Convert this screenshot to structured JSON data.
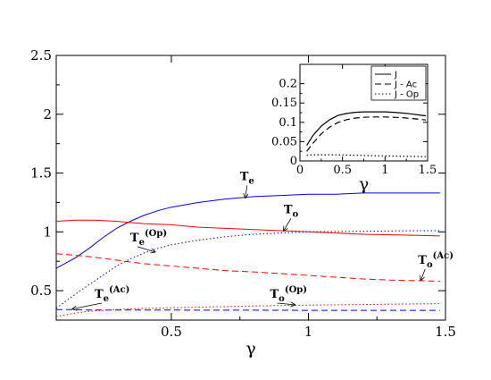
{
  "chart_data": [
    {
      "type": "line",
      "title": "",
      "xlabel": "γ",
      "ylabel": "",
      "xlim": [
        0.08,
        1.5
      ],
      "ylim": [
        0.25,
        2.5
      ],
      "xticks": [
        {
          "v": 0.5,
          "label": "0.5"
        },
        {
          "v": 1,
          "label": "1"
        },
        {
          "v": 1.5,
          "label": "1.5"
        }
      ],
      "yticks": [
        {
          "v": 0.5,
          "label": "0.5"
        },
        {
          "v": 1,
          "label": "1"
        },
        {
          "v": 1.5,
          "label": "1.5"
        },
        {
          "v": 2,
          "label": "2"
        },
        {
          "v": 2.5,
          "label": "2.5"
        }
      ],
      "grid": false,
      "series": [
        {
          "label_main": "T",
          "label_sub": "e",
          "label_sup": "",
          "color": "#0000ff",
          "dash": "solid",
          "points": [
            [
              0.08,
              0.69
            ],
            [
              0.15,
              0.78
            ],
            [
              0.2,
              0.86
            ],
            [
              0.25,
              0.95
            ],
            [
              0.3,
              1.03
            ],
            [
              0.35,
              1.09
            ],
            [
              0.4,
              1.14
            ],
            [
              0.45,
              1.18
            ],
            [
              0.5,
              1.21
            ],
            [
              0.6,
              1.25
            ],
            [
              0.7,
              1.28
            ],
            [
              0.8,
              1.3
            ],
            [
              0.9,
              1.31
            ],
            [
              1.0,
              1.32
            ],
            [
              1.1,
              1.32
            ],
            [
              1.2,
              1.33
            ],
            [
              1.3,
              1.33
            ],
            [
              1.4,
              1.33
            ],
            [
              1.48,
              1.33
            ]
          ]
        },
        {
          "label_main": "T",
          "label_sub": "o",
          "label_sup": "",
          "color": "#ff0000",
          "dash": "solid",
          "points": [
            [
              0.08,
              1.09
            ],
            [
              0.15,
              1.1
            ],
            [
              0.22,
              1.1
            ],
            [
              0.3,
              1.09
            ],
            [
              0.4,
              1.07
            ],
            [
              0.5,
              1.06
            ],
            [
              0.6,
              1.04
            ],
            [
              0.7,
              1.03
            ],
            [
              0.8,
              1.02
            ],
            [
              0.9,
              1.01
            ],
            [
              1.0,
              1.0
            ],
            [
              1.1,
              0.99
            ],
            [
              1.2,
              0.98
            ],
            [
              1.3,
              0.975
            ],
            [
              1.4,
              0.97
            ],
            [
              1.48,
              0.965
            ]
          ]
        },
        {
          "label_main": "T",
          "label_sub": "e",
          "label_sup": "(Op)",
          "color": "#0000ff",
          "dash": "dotted",
          "points": [
            [
              0.08,
              0.35
            ],
            [
              0.12,
              0.42
            ],
            [
              0.18,
              0.52
            ],
            [
              0.25,
              0.63
            ],
            [
              0.3,
              0.71
            ],
            [
              0.35,
              0.77
            ],
            [
              0.4,
              0.82
            ],
            [
              0.45,
              0.86
            ],
            [
              0.5,
              0.89
            ],
            [
              0.6,
              0.93
            ],
            [
              0.7,
              0.96
            ],
            [
              0.8,
              0.98
            ],
            [
              0.9,
              0.99
            ],
            [
              1.0,
              1.0
            ],
            [
              1.2,
              1.005
            ],
            [
              1.4,
              1.01
            ],
            [
              1.48,
              1.01
            ]
          ]
        },
        {
          "label_main": "T",
          "label_sub": "o",
          "label_sup": "(Ac)",
          "color": "#ff0000",
          "dash": "dashed",
          "points": [
            [
              0.08,
              0.815
            ],
            [
              0.2,
              0.79
            ],
            [
              0.3,
              0.76
            ],
            [
              0.4,
              0.73
            ],
            [
              0.5,
              0.71
            ],
            [
              0.6,
              0.69
            ],
            [
              0.7,
              0.67
            ],
            [
              0.8,
              0.66
            ],
            [
              0.9,
              0.645
            ],
            [
              1.0,
              0.63
            ],
            [
              1.1,
              0.615
            ],
            [
              1.2,
              0.6
            ],
            [
              1.3,
              0.59
            ],
            [
              1.4,
              0.585
            ],
            [
              1.48,
              0.58
            ]
          ]
        },
        {
          "label_main": "T",
          "label_sub": "e",
          "label_sup": "(Ac)",
          "color": "#0000ff",
          "dash": "dashed",
          "points": [
            [
              0.08,
              0.34
            ],
            [
              0.15,
              0.34
            ],
            [
              0.2,
              0.335
            ],
            [
              0.3,
              0.335
            ],
            [
              0.5,
              0.335
            ],
            [
              0.8,
              0.334
            ],
            [
              1.0,
              0.333
            ],
            [
              1.2,
              0.333
            ],
            [
              1.48,
              0.333
            ]
          ]
        },
        {
          "label_main": "T",
          "label_sub": "o",
          "label_sup": "(Op)",
          "color": "#ff0000",
          "dash": "dotted",
          "points": [
            [
              0.08,
              0.28
            ],
            [
              0.15,
              0.31
            ],
            [
              0.2,
              0.325
            ],
            [
              0.3,
              0.34
            ],
            [
              0.4,
              0.35
            ],
            [
              0.5,
              0.355
            ],
            [
              0.7,
              0.365
            ],
            [
              0.9,
              0.375
            ],
            [
              1.1,
              0.38
            ],
            [
              1.3,
              0.385
            ],
            [
              1.48,
              0.39
            ]
          ]
        }
      ],
      "annotations": [
        {
          "main": "T",
          "sub": "e",
          "sup": "",
          "text_x": 0.75,
          "text_y": 1.44,
          "arrow_x": 0.77,
          "arrow_y": 1.29
        },
        {
          "main": "T",
          "sub": "o",
          "sup": "",
          "text_x": 0.91,
          "text_y": 1.16,
          "arrow_x": 0.91,
          "arrow_y": 1.01
        },
        {
          "main": "T",
          "sub": "e",
          "sup": "(Op)",
          "text_x": 0.35,
          "text_y": 0.92,
          "arrow_x": 0.44,
          "arrow_y": 0.83
        },
        {
          "main": "T",
          "sub": "o",
          "sup": "(Ac)",
          "text_x": 1.4,
          "text_y": 0.73,
          "arrow_x": 1.41,
          "arrow_y": 0.59
        },
        {
          "main": "T",
          "sub": "e",
          "sup": "(Ac)",
          "text_x": 0.22,
          "text_y": 0.44,
          "arrow_x": 0.14,
          "arrow_y": 0.345
        },
        {
          "main": "T",
          "sub": "o",
          "sup": "(Op)",
          "text_x": 0.86,
          "text_y": 0.44,
          "arrow_x": 0.95,
          "arrow_y": 0.38
        }
      ]
    },
    {
      "type": "line",
      "title": "",
      "xlabel": "γ",
      "ylabel": "",
      "xlim": [
        0,
        1.5
      ],
      "ylim": [
        0,
        0.25
      ],
      "xticks": [
        {
          "v": 0,
          "label": "0"
        },
        {
          "v": 0.5,
          "label": "0.5"
        },
        {
          "v": 1,
          "label": "1"
        },
        {
          "v": 1.5,
          "label": "1.5"
        }
      ],
      "yticks": [
        {
          "v": 0,
          "label": "0"
        },
        {
          "v": 0.05,
          "label": "0.05"
        },
        {
          "v": 0.1,
          "label": "0.1"
        },
        {
          "v": 0.15,
          "label": "0.15"
        },
        {
          "v": 0.2,
          "label": "0.2"
        }
      ],
      "grid": false,
      "legend": "top-right",
      "series": [
        {
          "name": "J",
          "color": "#000000",
          "dash": "solid",
          "points": [
            [
              0.08,
              0.04
            ],
            [
              0.15,
              0.065
            ],
            [
              0.25,
              0.09
            ],
            [
              0.35,
              0.107
            ],
            [
              0.45,
              0.118
            ],
            [
              0.55,
              0.123
            ],
            [
              0.65,
              0.126
            ],
            [
              0.75,
              0.127
            ],
            [
              0.85,
              0.127
            ],
            [
              1.0,
              0.127
            ],
            [
              1.1,
              0.126
            ],
            [
              1.2,
              0.124
            ],
            [
              1.3,
              0.122
            ],
            [
              1.4,
              0.119
            ],
            [
              1.48,
              0.117
            ]
          ]
        },
        {
          "name": "J - Ac",
          "color": "#000000",
          "dash": "dashed",
          "points": [
            [
              0.08,
              0.025
            ],
            [
              0.15,
              0.045
            ],
            [
              0.25,
              0.07
            ],
            [
              0.35,
              0.088
            ],
            [
              0.45,
              0.1
            ],
            [
              0.55,
              0.107
            ],
            [
              0.65,
              0.111
            ],
            [
              0.75,
              0.113
            ],
            [
              0.85,
              0.114
            ],
            [
              1.0,
              0.114
            ],
            [
              1.1,
              0.113
            ],
            [
              1.2,
              0.112
            ],
            [
              1.3,
              0.11
            ],
            [
              1.4,
              0.108
            ],
            [
              1.48,
              0.106
            ]
          ]
        },
        {
          "name": "J - Op",
          "color": "#000000",
          "dash": "dotted",
          "points": [
            [
              0.08,
              0.015
            ],
            [
              0.2,
              0.016
            ],
            [
              0.4,
              0.016
            ],
            [
              0.6,
              0.015
            ],
            [
              0.8,
              0.014
            ],
            [
              1.0,
              0.013
            ],
            [
              1.2,
              0.012
            ],
            [
              1.48,
              0.011
            ]
          ]
        }
      ]
    }
  ]
}
